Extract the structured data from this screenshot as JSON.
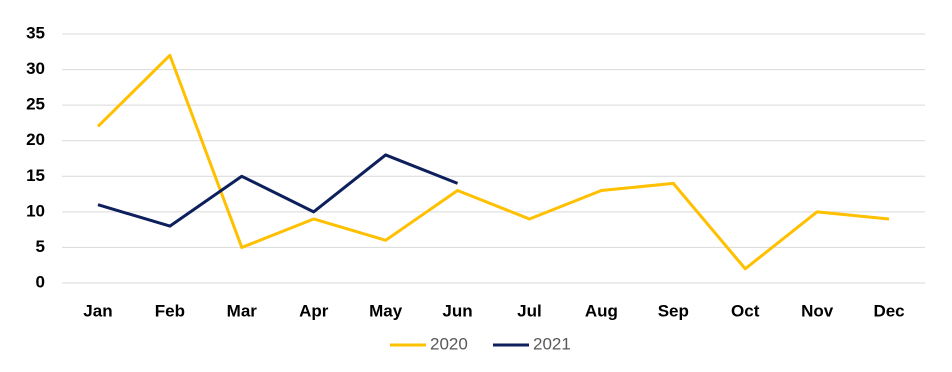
{
  "chart_data": {
    "type": "line",
    "categories": [
      "Jan",
      "Feb",
      "Mar",
      "Apr",
      "May",
      "Jun",
      "Jul",
      "Aug",
      "Sep",
      "Oct",
      "Nov",
      "Dec"
    ],
    "series": [
      {
        "name": "2020",
        "color": "#FFC000",
        "values": [
          22,
          32,
          5,
          9,
          6,
          13,
          9,
          13,
          14,
          2,
          10,
          9
        ]
      },
      {
        "name": "2021",
        "color": "#0D1F5C",
        "values": [
          11,
          8,
          15,
          10,
          18,
          14,
          null,
          null,
          null,
          null,
          null,
          null
        ]
      }
    ],
    "ylim": [
      0,
      35
    ],
    "yticks": [
      0,
      5,
      10,
      15,
      20,
      25,
      30,
      35
    ],
    "grid": true,
    "legend": "bottom"
  }
}
